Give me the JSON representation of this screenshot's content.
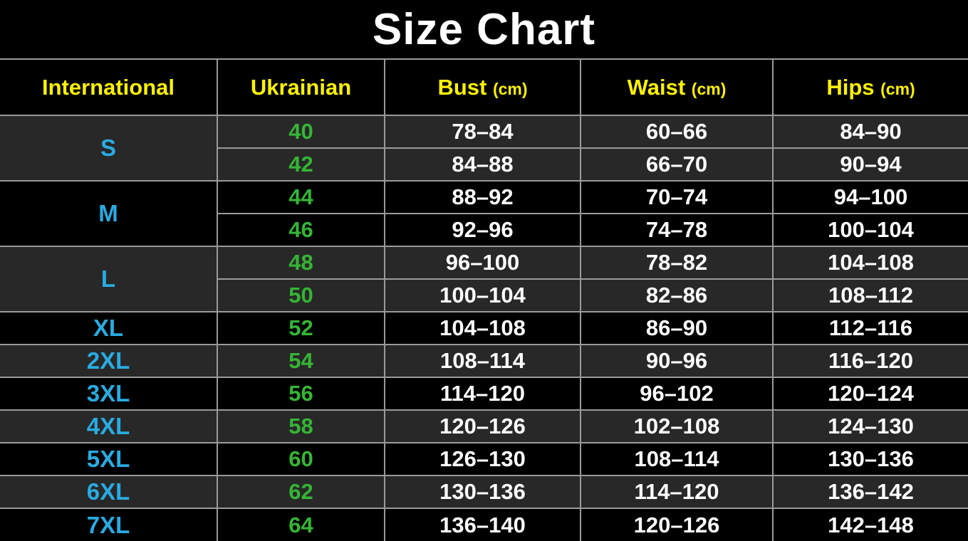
{
  "title": "Size Chart",
  "colors": {
    "background": "#000000",
    "title_text": "#ffffff",
    "header_text": "#fff200",
    "international_text": "#29abe2",
    "ukrainian_text": "#35b535",
    "measurement_text": "#ffffff",
    "shaded_row_bg": "#282828",
    "plain_row_bg": "#000000",
    "grid_border": "#9a9a9a"
  },
  "table": {
    "headers": [
      {
        "label": "International",
        "unit": ""
      },
      {
        "label": "Ukrainian",
        "unit": ""
      },
      {
        "label": "Bust",
        "unit": "(cm)"
      },
      {
        "label": "Waist",
        "unit": "(cm)"
      },
      {
        "label": "Hips",
        "unit": "(cm)"
      }
    ],
    "groups": [
      {
        "size": "S",
        "shaded": true,
        "rows": [
          {
            "ukr": "40",
            "bust": "78–84",
            "waist": "60–66",
            "hips": "84–90"
          },
          {
            "ukr": "42",
            "bust": "84–88",
            "waist": "66–70",
            "hips": "90–94"
          }
        ]
      },
      {
        "size": "M",
        "shaded": false,
        "rows": [
          {
            "ukr": "44",
            "bust": "88–92",
            "waist": "70–74",
            "hips": "94–100"
          },
          {
            "ukr": "46",
            "bust": "92–96",
            "waist": "74–78",
            "hips": "100–104"
          }
        ]
      },
      {
        "size": "L",
        "shaded": true,
        "rows": [
          {
            "ukr": "48",
            "bust": "96–100",
            "waist": "78–82",
            "hips": "104–108"
          },
          {
            "ukr": "50",
            "bust": "100–104",
            "waist": "82–86",
            "hips": "108–112"
          }
        ]
      },
      {
        "size": "XL",
        "shaded": false,
        "rows": [
          {
            "ukr": "52",
            "bust": "104–108",
            "waist": "86–90",
            "hips": "112–116"
          }
        ]
      },
      {
        "size": "2XL",
        "shaded": true,
        "rows": [
          {
            "ukr": "54",
            "bust": "108–114",
            "waist": "90–96",
            "hips": "116–120"
          }
        ]
      },
      {
        "size": "3XL",
        "shaded": false,
        "rows": [
          {
            "ukr": "56",
            "bust": "114–120",
            "waist": "96–102",
            "hips": "120–124"
          }
        ]
      },
      {
        "size": "4XL",
        "shaded": true,
        "rows": [
          {
            "ukr": "58",
            "bust": "120–126",
            "waist": "102–108",
            "hips": "124–130"
          }
        ]
      },
      {
        "size": "5XL",
        "shaded": false,
        "rows": [
          {
            "ukr": "60",
            "bust": "126–130",
            "waist": "108–114",
            "hips": "130–136"
          }
        ]
      },
      {
        "size": "6XL",
        "shaded": true,
        "rows": [
          {
            "ukr": "62",
            "bust": "130–136",
            "waist": "114–120",
            "hips": "136–142"
          }
        ]
      },
      {
        "size": "7XL",
        "shaded": false,
        "rows": [
          {
            "ukr": "64",
            "bust": "136–140",
            "waist": "120–126",
            "hips": "142–148"
          }
        ]
      }
    ]
  },
  "chart_data": {
    "type": "table",
    "title": "Size Chart",
    "columns": [
      "International",
      "Ukrainian",
      "Bust (cm)",
      "Waist (cm)",
      "Hips (cm)"
    ],
    "rows": [
      [
        "S",
        "40",
        "78–84",
        "60–66",
        "84–90"
      ],
      [
        "S",
        "42",
        "84–88",
        "66–70",
        "90–94"
      ],
      [
        "M",
        "44",
        "88–92",
        "70–74",
        "94–100"
      ],
      [
        "M",
        "46",
        "92–96",
        "74–78",
        "100–104"
      ],
      [
        "L",
        "48",
        "96–100",
        "78–82",
        "104–108"
      ],
      [
        "L",
        "50",
        "100–104",
        "82–86",
        "108–112"
      ],
      [
        "XL",
        "52",
        "104–108",
        "86–90",
        "112–116"
      ],
      [
        "2XL",
        "54",
        "108–114",
        "90–96",
        "116–120"
      ],
      [
        "3XL",
        "56",
        "114–120",
        "96–102",
        "120–124"
      ],
      [
        "4XL",
        "58",
        "120–126",
        "102–108",
        "124–130"
      ],
      [
        "5XL",
        "60",
        "126–130",
        "108–114",
        "130–136"
      ],
      [
        "6XL",
        "62",
        "130–136",
        "114–120",
        "136–142"
      ],
      [
        "7XL",
        "64",
        "136–140",
        "120–126",
        "142–148"
      ]
    ]
  }
}
